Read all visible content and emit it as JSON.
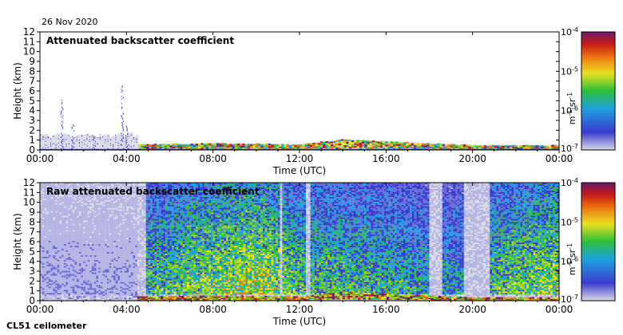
{
  "header": {
    "date": "26 Nov 2020"
  },
  "footer": {
    "instrument": "CL51 ceilometer"
  },
  "chart_data": [
    {
      "type": "heatmap",
      "title": "Attenuated backscatter coefficient",
      "xlabel": "Time (UTC)",
      "ylabel": "Height (km)",
      "xlim": [
        "00:00",
        "24:00"
      ],
      "ylim": [
        0,
        12
      ],
      "x_ticks": [
        "00:00",
        "04:00",
        "08:00",
        "12:00",
        "16:00",
        "20:00",
        "00:00"
      ],
      "y_ticks": [
        0,
        1,
        2,
        3,
        4,
        5,
        6,
        7,
        8,
        9,
        10,
        11,
        12
      ],
      "colorbar": {
        "label": "m-1 sr-1",
        "scale": "log",
        "min": 1e-07,
        "max": 0.0001,
        "ticks": [
          "10-4",
          "10-5",
          "10-6",
          "10-7"
        ]
      },
      "boundary_layer_top_km": [
        [
          0,
          0.1
        ],
        [
          4.5,
          0.4
        ],
        [
          8,
          0.5
        ],
        [
          12,
          0.4
        ],
        [
          14,
          0.9
        ],
        [
          16,
          0.7
        ],
        [
          18,
          0.5
        ],
        [
          20,
          0.3
        ],
        [
          24,
          0.3
        ]
      ],
      "spikes": [
        [
          1,
          5.2
        ],
        [
          1.5,
          3.0
        ],
        [
          2.5,
          1.5
        ],
        [
          3.8,
          6.6
        ],
        [
          4,
          2.8
        ]
      ]
    },
    {
      "type": "heatmap",
      "title": "Raw attenuated backscatter coefficient",
      "xlabel": "Time (UTC)",
      "ylabel": "Height (km)",
      "xlim": [
        "00:00",
        "24:00"
      ],
      "ylim": [
        0,
        12
      ],
      "x_ticks": [
        "00:00",
        "04:00",
        "08:00",
        "12:00",
        "16:00",
        "20:00",
        "00:00"
      ],
      "y_ticks": [
        0,
        1,
        2,
        3,
        4,
        5,
        6,
        7,
        8,
        9,
        10,
        11,
        12
      ],
      "colorbar": {
        "label": "m-1 sr-1",
        "scale": "log",
        "min": 1e-07,
        "max": 0.0001,
        "ticks": [
          "10-4",
          "10-5",
          "10-6",
          "10-7"
        ]
      },
      "noise_intensity": [
        [
          0,
          0.2
        ],
        [
          4.5,
          0.2
        ],
        [
          4.6,
          0.55
        ],
        [
          7,
          0.65
        ],
        [
          10,
          0.75
        ],
        [
          12,
          0.6
        ],
        [
          16,
          0.55
        ],
        [
          18,
          0.5
        ],
        [
          20,
          0.5
        ],
        [
          21,
          0.6
        ],
        [
          24,
          0.7
        ]
      ],
      "gaps": [
        [
          4.5,
          4.8
        ],
        [
          11.0,
          11.1
        ],
        [
          12.2,
          12.4
        ],
        [
          17.9,
          18.5
        ],
        [
          19.6,
          20.8
        ]
      ]
    }
  ]
}
